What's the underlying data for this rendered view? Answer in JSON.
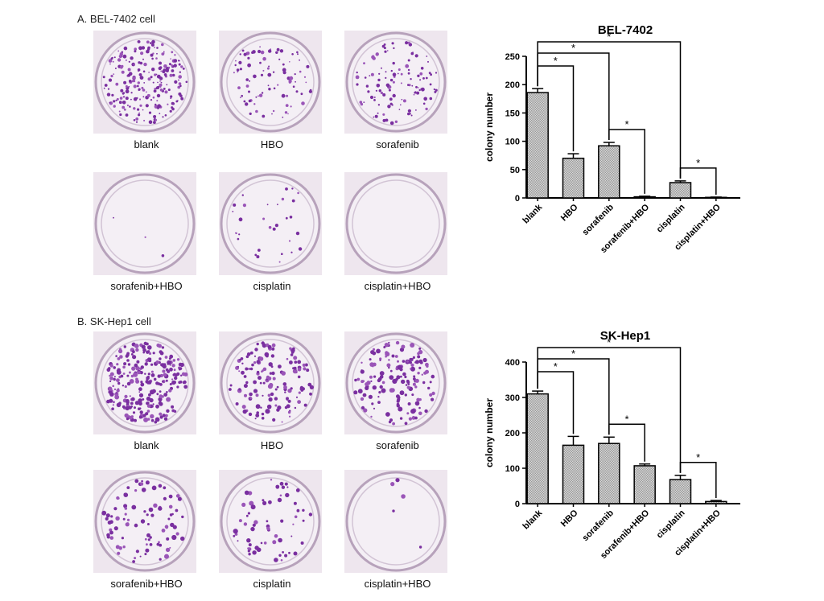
{
  "panels": [
    {
      "title": "A. BEL-7402 cell",
      "dishes": [
        {
          "label": "blank",
          "density": 0.9
        },
        {
          "label": "HBO",
          "density": 0.35
        },
        {
          "label": "sorafenib",
          "density": 0.45
        },
        {
          "label": "sorafenib+HBO",
          "density": 0.01
        },
        {
          "label": "cisplatin",
          "density": 0.12
        },
        {
          "label": "cisplatin+HBO",
          "density": 0.0
        }
      ]
    },
    {
      "title": "B. SK-Hep1 cell",
      "dishes": [
        {
          "label": "blank",
          "density": 1.0
        },
        {
          "label": "HBO",
          "density": 0.55
        },
        {
          "label": "sorafenib",
          "density": 0.6
        },
        {
          "label": "sorafenib+HBO",
          "density": 0.35
        },
        {
          "label": "cisplatin",
          "density": 0.25
        },
        {
          "label": "cisplatin+HBO",
          "density": 0.02
        }
      ]
    }
  ],
  "chart_data": [
    {
      "type": "bar",
      "title": "BEL-7402",
      "ylabel": "colony number",
      "xlabel": "",
      "categories": [
        "blank",
        "HBO",
        "sorafenib",
        "sorafenib+HBO",
        "cisplatin",
        "cisplatin+HBO"
      ],
      "values": [
        186,
        70,
        92,
        2,
        27,
        1
      ],
      "errors": [
        7,
        8,
        6,
        1,
        3,
        0.5
      ],
      "ylim": [
        0,
        250
      ],
      "yticks": [
        "0",
        "50",
        "100",
        "150",
        "200",
        "250"
      ],
      "significance": [
        {
          "from": 0,
          "to": 1,
          "label": "*"
        },
        {
          "from": 0,
          "to": 2,
          "label": "*"
        },
        {
          "from": 0,
          "to": 4,
          "label": "*"
        },
        {
          "from": 2,
          "to": 3,
          "label": "*"
        },
        {
          "from": 4,
          "to": 5,
          "label": "*"
        }
      ],
      "grid": false,
      "bar_color": "#9a9a9a"
    },
    {
      "type": "bar",
      "title": "SK-Hep1",
      "ylabel": "colony number",
      "xlabel": "",
      "categories": [
        "blank",
        "HBO",
        "sorafenib",
        "sorafenib+HBO",
        "cisplatin",
        "cisplatin+HBO"
      ],
      "values": [
        310,
        165,
        170,
        107,
        68,
        6
      ],
      "errors": [
        8,
        25,
        18,
        5,
        12,
        3
      ],
      "ylim": [
        0,
        400
      ],
      "yticks": [
        "0",
        "100",
        "200",
        "300",
        "400"
      ],
      "significance": [
        {
          "from": 0,
          "to": 1,
          "label": "*"
        },
        {
          "from": 0,
          "to": 2,
          "label": "*"
        },
        {
          "from": 0,
          "to": 4,
          "label": "*"
        },
        {
          "from": 2,
          "to": 3,
          "label": "*"
        },
        {
          "from": 4,
          "to": 5,
          "label": "*"
        }
      ],
      "grid": false,
      "bar_color": "#9a9a9a"
    }
  ]
}
